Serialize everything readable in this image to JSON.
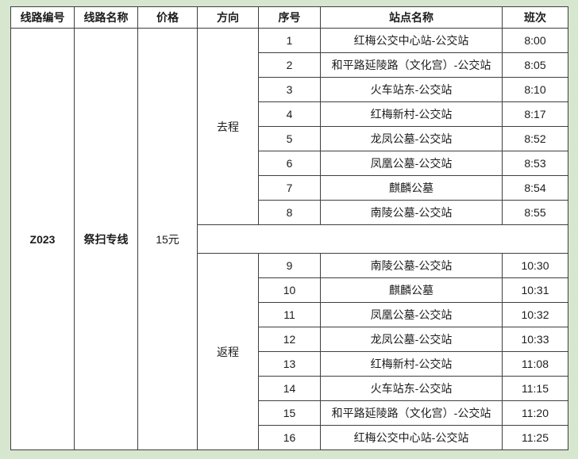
{
  "page": {
    "background_color": "#d7e6cf",
    "table_background": "#ffffff",
    "border_color": "#3f3f3f",
    "text_color": "#1c1c1c"
  },
  "table": {
    "headers": [
      "线路编号",
      "线路名称",
      "价格",
      "方向",
      "序号",
      "站点名称",
      "班次"
    ],
    "route": {
      "code": "Z023",
      "name": "祭扫专线",
      "price": "15元"
    },
    "directions": [
      {
        "label": "去程",
        "stops": [
          {
            "seq": "1",
            "station": "红梅公交中心站-公交站",
            "time": "8:00"
          },
          {
            "seq": "2",
            "station": "和平路延陵路（文化宫）-公交站",
            "time": "8:05"
          },
          {
            "seq": "3",
            "station": "火车站东-公交站",
            "time": "8:10"
          },
          {
            "seq": "4",
            "station": "红梅新村-公交站",
            "time": "8:17"
          },
          {
            "seq": "5",
            "station": "龙凤公墓-公交站",
            "time": "8:52"
          },
          {
            "seq": "6",
            "station": "凤凰公墓-公交站",
            "time": "8:53"
          },
          {
            "seq": "7",
            "station": "麒麟公墓",
            "time": "8:54"
          },
          {
            "seq": "8",
            "station": "南陵公墓-公交站",
            "time": "8:55"
          }
        ]
      },
      {
        "label": "返程",
        "stops": [
          {
            "seq": "9",
            "station": "南陵公墓-公交站",
            "time": "10:30"
          },
          {
            "seq": "10",
            "station": "麒麟公墓",
            "time": "10:31"
          },
          {
            "seq": "11",
            "station": "凤凰公墓-公交站",
            "time": "10:32"
          },
          {
            "seq": "12",
            "station": "龙凤公墓-公交站",
            "time": "10:33"
          },
          {
            "seq": "13",
            "station": "红梅新村-公交站",
            "time": "11:08"
          },
          {
            "seq": "14",
            "station": "火车站东-公交站",
            "time": "11:15"
          },
          {
            "seq": "15",
            "station": "和平路延陵路（文化宫）-公交站",
            "time": "11:20"
          },
          {
            "seq": "16",
            "station": "红梅公交中心站-公交站",
            "time": "11:25"
          }
        ]
      }
    ]
  }
}
